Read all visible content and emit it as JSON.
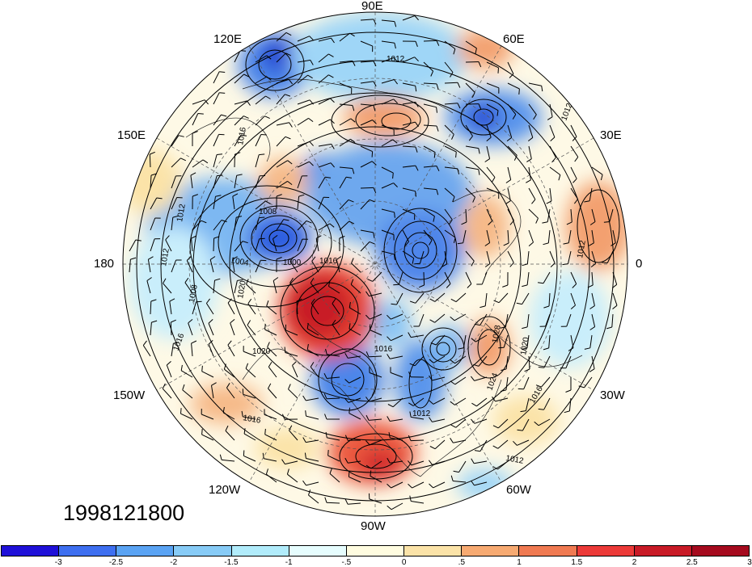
{
  "date_label": "1998121800",
  "longitude_labels": [
    "90E",
    "60E",
    "120E",
    "30E",
    "150E",
    "180",
    "0",
    "150W",
    "30W",
    "120W",
    "60W",
    "90W"
  ],
  "contour_labels": [
    "1012",
    "1012",
    "1016",
    "1008",
    "1012",
    "1000",
    "1016",
    "1004",
    "1012",
    "1020",
    "1008",
    "1016",
    "1016",
    "1012",
    "1028",
    "1024",
    "1020",
    "1016",
    "1012",
    "1012",
    "1020",
    "1016"
  ],
  "colorbar": {
    "colors": [
      "#1f10d8",
      "#3e6ff0",
      "#5aa3f3",
      "#87cbf6",
      "#b1ecfb",
      "#e6fdfe",
      "#fffce0",
      "#fbe3a8",
      "#f7aa72",
      "#f07a52",
      "#ec3a38",
      "#c81a26",
      "#a50a1e"
    ],
    "ticks": [
      "-3",
      "-2.5",
      "-2",
      "-1.5",
      "-1",
      "-.5",
      "0",
      ".5",
      "1",
      "1.5",
      "2",
      "2.5",
      "3"
    ]
  },
  "colors": {
    "strong_negative": "#2f5fe0",
    "negative": "#7db8f2",
    "weak_negative": "#c9eefb",
    "weak_positive": "#fbe7b8",
    "positive": "#f3a070",
    "strong_positive": "#e0302c"
  }
}
